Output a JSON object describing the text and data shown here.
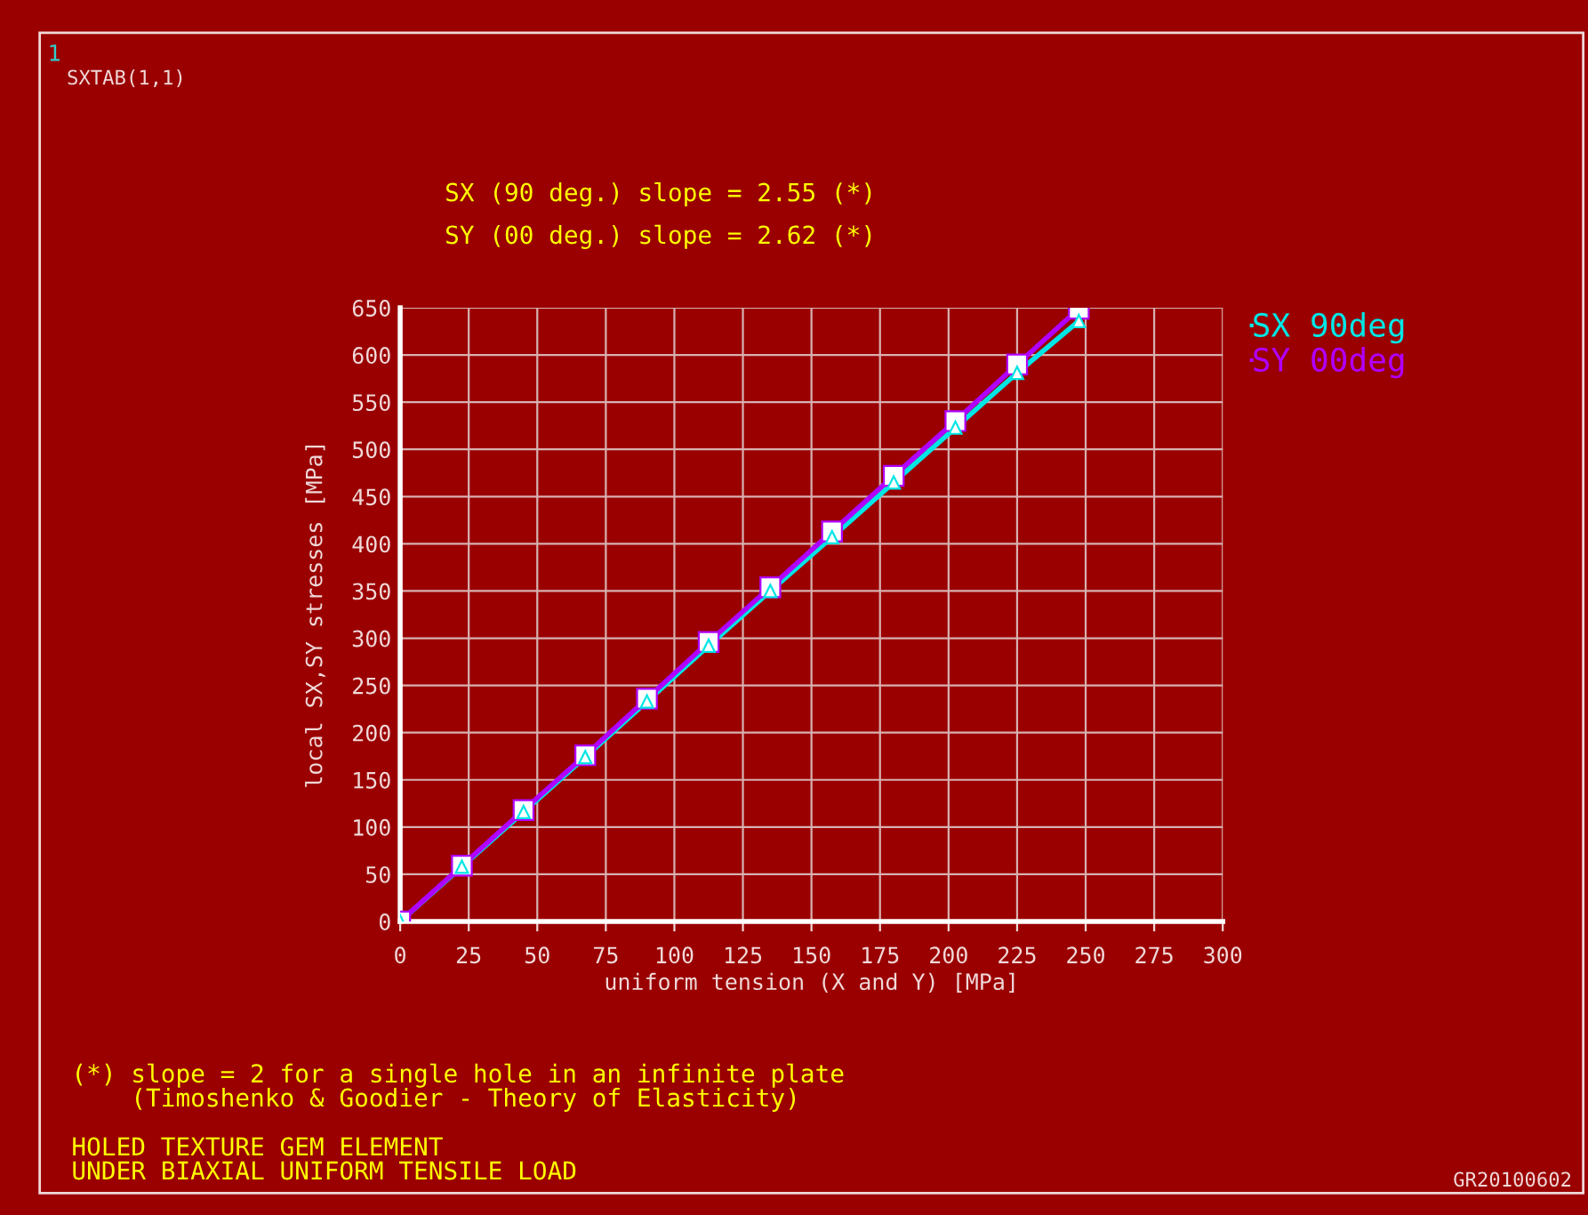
{
  "chart_data": {
    "type": "line",
    "xlabel": "uniform tension (X and Y) [MPa]",
    "ylabel": "local SX,SY stresses [MPa]",
    "x": [
      0,
      22.5,
      45,
      67.5,
      90,
      112.5,
      135,
      157.5,
      180,
      202.5,
      225,
      247.5
    ],
    "series": [
      {
        "name": "SX 90deg",
        "color": "#00e5e5",
        "marker": "triangle",
        "values": [
          0,
          58,
          116,
          174,
          233,
          292,
          350,
          407,
          465,
          523,
          581,
          636
        ]
      },
      {
        "name": "SY 00deg",
        "color": "#b000ff",
        "marker": "square",
        "values": [
          0,
          59,
          118,
          176,
          236,
          296,
          354,
          413,
          472,
          530,
          590,
          649
        ]
      }
    ],
    "xlim": [
      0,
      300
    ],
    "xticks": [
      0,
      25,
      50,
      75,
      100,
      125,
      150,
      175,
      200,
      225,
      250,
      275,
      300
    ],
    "ylim": [
      0,
      650
    ],
    "yticks": [
      0,
      50,
      100,
      150,
      200,
      250,
      300,
      350,
      400,
      450,
      500,
      550,
      600,
      650
    ],
    "grid": true,
    "legend": "top right",
    "line_style": "solid",
    "annotations": [
      "1",
      "SXTAB(1,1)",
      "SX (90 deg.) slope = 2.55 (*)",
      "SY (00 deg.) slope = 2.62 (*)",
      "(*) slope = 2 for a single hole in an infinite plate\n    (Timoshenko & Goodier - Theory of Elasticity)",
      "HOLED TEXTURE GEM ELEMENT\nUNDER BIAXIAL UNIFORM TENSILE LOAD",
      "GR20100602"
    ]
  }
}
